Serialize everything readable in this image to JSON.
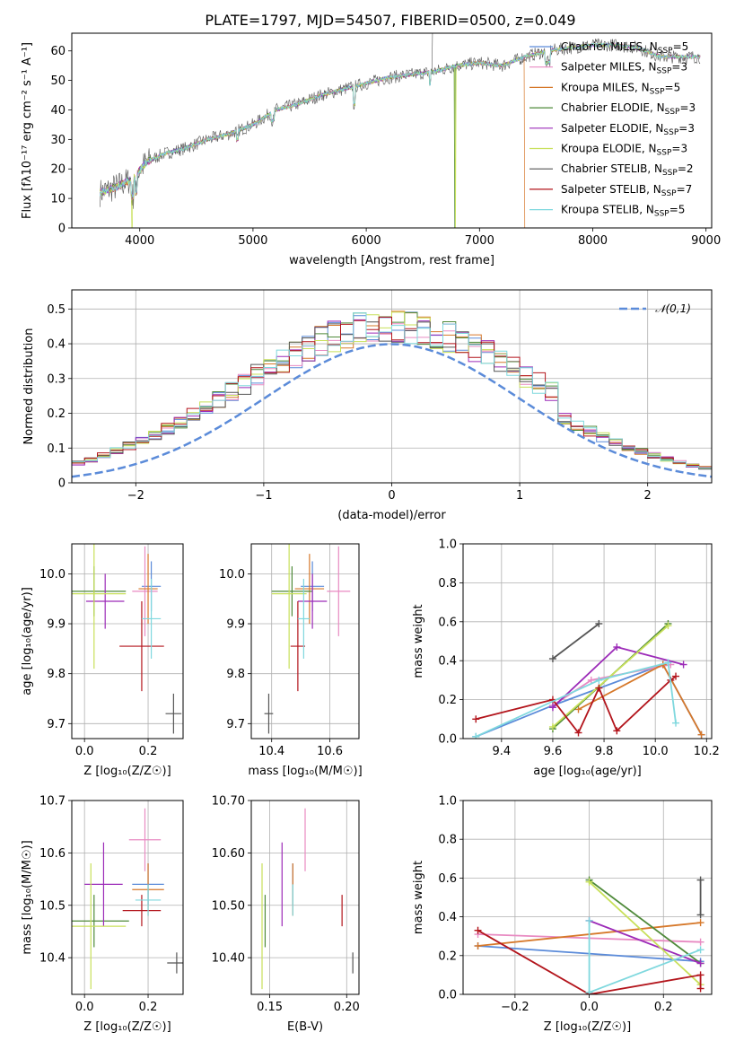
{
  "figure": {
    "title": "PLATE=1797, MJD=54507, FIBERID=0500, z=0.049"
  },
  "colors": {
    "Chabrier MILES": "#5b8bd9",
    "Salpeter MILES": "#e88ac2",
    "Kroupa MILES": "#d6782a",
    "Chabrier ELODIE": "#4f8a3a",
    "Salpeter ELODIE": "#9c2bb8",
    "Kroupa ELODIE": "#c8e05a",
    "Chabrier STELIB": "#555555",
    "Salpeter STELIB": "#b3151c",
    "Kroupa STELIB": "#7fd8de"
  },
  "chart_data": [
    {
      "id": "spectrum",
      "type": "line",
      "title": "PLATE=1797, MJD=54507, FIBERID=0500, z=0.049",
      "xlabel": "wavelength [Angstrom, rest frame]",
      "ylabel": "Flux [fλ10⁻¹⁷ erg cm⁻² s⁻¹ A⁻¹]",
      "xlim": [
        3400,
        9050
      ],
      "ylim": [
        0,
        66
      ],
      "xticks": [
        4000,
        5000,
        6000,
        7000,
        8000,
        9000
      ],
      "yticks": [
        0,
        10,
        20,
        30,
        40,
        50,
        60
      ],
      "legend_position": "top-right",
      "legend": [
        {
          "model": "Chabrier MILES",
          "label": "Chabrier MILES, N",
          "sub": "SSP",
          "suffix": "=5"
        },
        {
          "model": "Salpeter MILES",
          "label": "Salpeter MILES, N",
          "sub": "SSP",
          "suffix": "=3"
        },
        {
          "model": "Kroupa MILES",
          "label": "Kroupa MILES, N",
          "sub": "SSP",
          "suffix": "=5"
        },
        {
          "model": "Chabrier ELODIE",
          "label": "Chabrier ELODIE, N",
          "sub": "SSP",
          "suffix": "=3"
        },
        {
          "model": "Salpeter ELODIE",
          "label": "Salpeter ELODIE, N",
          "sub": "SSP",
          "suffix": "=3"
        },
        {
          "model": "Kroupa ELODIE",
          "label": "Kroupa ELODIE, N",
          "sub": "SSP",
          "suffix": "=3"
        },
        {
          "model": "Chabrier STELIB",
          "label": "Chabrier STELIB, N",
          "sub": "SSP",
          "suffix": "=2"
        },
        {
          "model": "Salpeter STELIB",
          "label": "Salpeter STELIB, N",
          "sub": "SSP",
          "suffix": "=7"
        },
        {
          "model": "Kroupa STELIB",
          "label": "Kroupa STELIB, N",
          "sub": "SSP",
          "suffix": "=5"
        }
      ],
      "continuum": {
        "x": [
          3650,
          3800,
          3950,
          4050,
          4200,
          4400,
          4600,
          4800,
          5000,
          5200,
          5400,
          5600,
          5800,
          6000,
          6200,
          6400,
          6600,
          6800,
          7000,
          7200,
          7400,
          7600,
          7800,
          8000,
          8200,
          8400,
          8600,
          8800,
          8950
        ],
        "y": [
          12,
          14,
          17,
          22,
          25,
          27,
          30,
          32,
          35,
          40,
          42,
          45,
          47,
          49,
          51,
          52,
          53,
          55,
          56,
          55,
          58,
          60,
          61,
          62,
          62,
          61,
          58,
          58,
          58
        ]
      },
      "dropouts": [
        {
          "model": "Kroupa ELODIE",
          "x": 3930
        },
        {
          "model": "Chabrier ELODIE",
          "x": 6780
        },
        {
          "model": "Kroupa MILES",
          "x": 7400
        },
        {
          "model": "Kroupa ELODIE",
          "x": 6790
        }
      ]
    },
    {
      "id": "residual-histogram",
      "type": "step",
      "xlabel": "(data-model)/error",
      "ylabel": "Normed distribution",
      "xlim": [
        -2.5,
        2.5
      ],
      "ylim": [
        0,
        0.555
      ],
      "xticks": [
        -2,
        -1,
        0,
        1,
        2
      ],
      "yticks": [
        0.0,
        0.1,
        0.2,
        0.3,
        0.4,
        0.5
      ],
      "bin_width": 0.1,
      "reference_curve": {
        "label": "𝒩(0,1)",
        "color": "#5b8bd9",
        "style": "dashed"
      },
      "legend_position": "top-right"
    },
    {
      "id": "age-vs-Z",
      "type": "errorbar",
      "xlabel": "Z [log₁₀(Z/Z☉)]",
      "ylabel": "age  [log₁₀(age/yr)]",
      "xlim": [
        -0.04,
        0.31
      ],
      "ylim": [
        9.67,
        10.06
      ],
      "xticks": [
        0.0,
        0.2
      ],
      "yticks": [
        9.7,
        9.8,
        9.9,
        10.0
      ],
      "points": [
        {
          "model": "Chabrier MILES",
          "x": 0.21,
          "xerr": 0.03,
          "y": 9.975,
          "yerr": 0.05
        },
        {
          "model": "Salpeter MILES",
          "x": 0.19,
          "xerr": 0.04,
          "y": 9.965,
          "yerr": 0.09
        },
        {
          "model": "Kroupa MILES",
          "x": 0.2,
          "xerr": 0.03,
          "y": 9.97,
          "yerr": 0.07
        },
        {
          "model": "Chabrier ELODIE",
          "x": 0.03,
          "xerr": 0.1,
          "y": 9.965,
          "yerr": 0.05
        },
        {
          "model": "Salpeter ELODIE",
          "x": 0.065,
          "xerr": 0.06,
          "y": 9.945,
          "yerr": 0.055
        },
        {
          "model": "Kroupa ELODIE",
          "x": 0.03,
          "xerr": 0.1,
          "y": 9.96,
          "yerr": 0.15
        },
        {
          "model": "Chabrier STELIB",
          "x": 0.28,
          "xerr": 0.025,
          "y": 9.72,
          "yerr": 0.04
        },
        {
          "model": "Salpeter STELIB",
          "x": 0.18,
          "xerr": 0.07,
          "y": 9.855,
          "yerr": 0.09
        },
        {
          "model": "Kroupa STELIB",
          "x": 0.21,
          "xerr": 0.03,
          "y": 9.91,
          "yerr": 0.08
        }
      ]
    },
    {
      "id": "age-vs-mass",
      "type": "errorbar",
      "xlabel": "mass [log₁₀(M/M☉)]",
      "ylabel": "",
      "xlim": [
        10.33,
        10.7
      ],
      "ylim": [
        9.67,
        10.06
      ],
      "xticks": [
        10.4,
        10.6
      ],
      "yticks": [
        9.7,
        9.8,
        9.9,
        10.0
      ],
      "points": [
        {
          "model": "Chabrier MILES",
          "x": 10.54,
          "xerr": 0.04,
          "y": 9.975,
          "yerr": 0.05
        },
        {
          "model": "Salpeter MILES",
          "x": 10.63,
          "xerr": 0.04,
          "y": 9.965,
          "yerr": 0.09
        },
        {
          "model": "Kroupa MILES",
          "x": 10.53,
          "xerr": 0.05,
          "y": 9.97,
          "yerr": 0.07
        },
        {
          "model": "Chabrier ELODIE",
          "x": 10.47,
          "xerr": 0.07,
          "y": 9.965,
          "yerr": 0.05
        },
        {
          "model": "Salpeter ELODIE",
          "x": 10.54,
          "xerr": 0.05,
          "y": 9.945,
          "yerr": 0.055
        },
        {
          "model": "Kroupa ELODIE",
          "x": 10.46,
          "xerr": 0.06,
          "y": 9.96,
          "yerr": 0.15
        },
        {
          "model": "Chabrier STELIB",
          "x": 10.39,
          "xerr": 0.015,
          "y": 9.72,
          "yerr": 0.04
        },
        {
          "model": "Salpeter STELIB",
          "x": 10.49,
          "xerr": 0.025,
          "y": 9.855,
          "yerr": 0.09
        },
        {
          "model": "Kroupa STELIB",
          "x": 10.51,
          "xerr": 0.02,
          "y": 9.91,
          "yerr": 0.08
        }
      ]
    },
    {
      "id": "mass-weight-vs-age",
      "type": "line",
      "xlabel": "age  [log₁₀(age/yr)]",
      "ylabel": "mass weight",
      "xlim": [
        9.25,
        10.22
      ],
      "ylim": [
        0,
        1.0
      ],
      "xticks": [
        9.4,
        9.6,
        9.8,
        10.0,
        10.2
      ],
      "yticks": [
        0.0,
        0.2,
        0.4,
        0.6,
        0.8,
        1.0
      ],
      "series": [
        {
          "model": "Chabrier MILES",
          "x": [
            9.3,
            9.6,
            10.03,
            10.18
          ],
          "y": [
            0.01,
            0.17,
            0.38,
            0.02
          ]
        },
        {
          "model": "Salpeter MILES",
          "x": [
            9.6,
            9.75,
            10.06
          ],
          "y": [
            0.17,
            0.3,
            0.38
          ]
        },
        {
          "model": "Kroupa MILES",
          "x": [
            9.7,
            10.03,
            10.18
          ],
          "y": [
            0.15,
            0.38,
            0.02
          ]
        },
        {
          "model": "Chabrier ELODIE",
          "x": [
            9.6,
            10.05
          ],
          "y": [
            0.05,
            0.59
          ]
        },
        {
          "model": "Salpeter ELODIE",
          "x": [
            9.6,
            9.85,
            10.11
          ],
          "y": [
            0.16,
            0.47,
            0.38
          ]
        },
        {
          "model": "Kroupa ELODIE",
          "x": [
            9.6,
            10.05
          ],
          "y": [
            0.06,
            0.58
          ]
        },
        {
          "model": "Chabrier STELIB",
          "x": [
            9.6,
            9.78
          ],
          "y": [
            0.41,
            0.59
          ]
        },
        {
          "model": "Salpeter STELIB",
          "x": [
            9.3,
            9.6,
            9.7,
            9.78,
            9.85,
            10.06,
            10.08
          ],
          "y": [
            0.1,
            0.2,
            0.03,
            0.26,
            0.04,
            0.3,
            0.32
          ]
        },
        {
          "model": "Kroupa STELIB",
          "x": [
            9.3,
            9.78,
            10.05,
            10.08
          ],
          "y": [
            0.01,
            0.3,
            0.39,
            0.08
          ]
        }
      ]
    },
    {
      "id": "mass-vs-Z",
      "type": "errorbar",
      "xlabel": "Z [log₁₀(Z/Z☉)]",
      "ylabel": "mass [log₁₀(M/M☉)]",
      "xlim": [
        -0.04,
        0.31
      ],
      "ylim": [
        10.33,
        10.7
      ],
      "xticks": [
        0.0,
        0.2
      ],
      "yticks": [
        10.4,
        10.5,
        10.6,
        10.7
      ],
      "points": [
        {
          "model": "Chabrier MILES",
          "x": 0.2,
          "xerr": 0.05,
          "y": 10.54,
          "yerr": 0.04
        },
        {
          "model": "Salpeter MILES",
          "x": 0.19,
          "xerr": 0.05,
          "y": 10.625,
          "yerr": 0.06
        },
        {
          "model": "Kroupa MILES",
          "x": 0.2,
          "xerr": 0.05,
          "y": 10.53,
          "yerr": 0.05
        },
        {
          "model": "Chabrier ELODIE",
          "x": 0.03,
          "xerr": 0.11,
          "y": 10.47,
          "yerr": 0.05
        },
        {
          "model": "Salpeter ELODIE",
          "x": 0.06,
          "xerr": 0.06,
          "y": 10.54,
          "yerr": 0.08
        },
        {
          "model": "Kroupa ELODIE",
          "x": 0.02,
          "xerr": 0.11,
          "y": 10.46,
          "yerr": 0.12
        },
        {
          "model": "Chabrier STELIB",
          "x": 0.29,
          "xerr": 0.03,
          "y": 10.39,
          "yerr": 0.02
        },
        {
          "model": "Salpeter STELIB",
          "x": 0.18,
          "xerr": 0.06,
          "y": 10.49,
          "yerr": 0.03
        },
        {
          "model": "Kroupa STELIB",
          "x": 0.2,
          "xerr": 0.04,
          "y": 10.51,
          "yerr": 0.03
        }
      ]
    },
    {
      "id": "mass-vs-EBV",
      "type": "errorbar",
      "xlabel": "E(B-V)",
      "ylabel": "",
      "xlim": [
        0.138,
        0.208
      ],
      "ylim": [
        10.33,
        10.7
      ],
      "xticks": [
        0.15,
        0.2
      ],
      "yticks": [
        10.4,
        10.5,
        10.6,
        10.7
      ],
      "points": [
        {
          "model": "Chabrier MILES",
          "x": 0.165,
          "xerr": 0,
          "y": 10.54,
          "yerr": 0.04
        },
        {
          "model": "Salpeter MILES",
          "x": 0.173,
          "xerr": 0,
          "y": 10.625,
          "yerr": 0.06
        },
        {
          "model": "Kroupa MILES",
          "x": 0.165,
          "xerr": 0,
          "y": 10.53,
          "yerr": 0.05
        },
        {
          "model": "Chabrier ELODIE",
          "x": 0.147,
          "xerr": 0,
          "y": 10.47,
          "yerr": 0.05
        },
        {
          "model": "Salpeter ELODIE",
          "x": 0.158,
          "xerr": 0,
          "y": 10.54,
          "yerr": 0.08
        },
        {
          "model": "Kroupa ELODIE",
          "x": 0.145,
          "xerr": 0,
          "y": 10.46,
          "yerr": 0.12
        },
        {
          "model": "Chabrier STELIB",
          "x": 0.204,
          "xerr": 0,
          "y": 10.39,
          "yerr": 0.02
        },
        {
          "model": "Salpeter STELIB",
          "x": 0.197,
          "xerr": 0,
          "y": 10.49,
          "yerr": 0.03
        },
        {
          "model": "Kroupa STELIB",
          "x": 0.165,
          "xerr": 0,
          "y": 10.51,
          "yerr": 0.03
        }
      ]
    },
    {
      "id": "mass-weight-vs-Z",
      "type": "line",
      "xlabel": "Z [log₁₀(Z/Z☉)]",
      "ylabel": "mass weight",
      "xlim": [
        -0.34,
        0.33
      ],
      "ylim": [
        0,
        1.0
      ],
      "xticks": [
        -0.2,
        0.0,
        0.2
      ],
      "yticks": [
        0.0,
        0.2,
        0.4,
        0.6,
        0.8,
        1.0
      ],
      "series": [
        {
          "model": "Chabrier MILES",
          "x": [
            -0.3,
            0.3
          ],
          "y": [
            0.25,
            0.17
          ]
        },
        {
          "model": "Salpeter MILES",
          "x": [
            -0.3,
            0.3
          ],
          "y": [
            0.31,
            0.27
          ]
        },
        {
          "model": "Kroupa MILES",
          "x": [
            -0.3,
            0.3
          ],
          "y": [
            0.25,
            0.37
          ]
        },
        {
          "model": "Chabrier ELODIE",
          "x": [
            0.0,
            0.3
          ],
          "y": [
            0.59,
            0.16
          ]
        },
        {
          "model": "Salpeter ELODIE",
          "x": [
            0.0,
            0.3
          ],
          "y": [
            0.38,
            0.16
          ]
        },
        {
          "model": "Kroupa ELODIE",
          "x": [
            0.0,
            0.3
          ],
          "y": [
            0.58,
            0.05
          ]
        },
        {
          "model": "Chabrier STELIB",
          "x": [
            0.3,
            0.3
          ],
          "y": [
            0.59,
            0.41
          ]
        },
        {
          "model": "Salpeter STELIB",
          "x": [
            -0.3,
            0.0,
            0.3,
            0.3
          ],
          "y": [
            0.33,
            0.0,
            0.1,
            0.03
          ]
        },
        {
          "model": "Kroupa STELIB",
          "x": [
            0.0,
            0.0,
            0.3
          ],
          "y": [
            0.38,
            0.01,
            0.23
          ]
        }
      ]
    }
  ]
}
